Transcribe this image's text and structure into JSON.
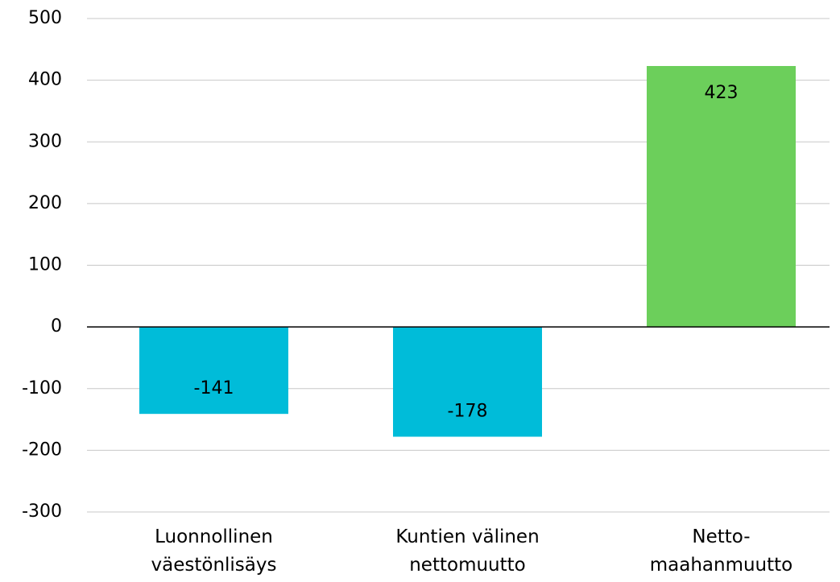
{
  "chart_data": {
    "type": "bar",
    "categories": [
      "Luonnollinen\nväestönlisäys",
      "Kuntien välinen\nnettomuutto",
      "Netto-\nmaahanmuutto"
    ],
    "values": [
      -141,
      -178,
      423
    ],
    "colors": [
      "#00bcd9",
      "#00bcd9",
      "#6ccf5b"
    ],
    "ylim": [
      -300,
      500
    ],
    "yticks": [
      -300,
      -200,
      -100,
      0,
      100,
      200,
      300,
      400,
      500
    ],
    "grid": true
  }
}
